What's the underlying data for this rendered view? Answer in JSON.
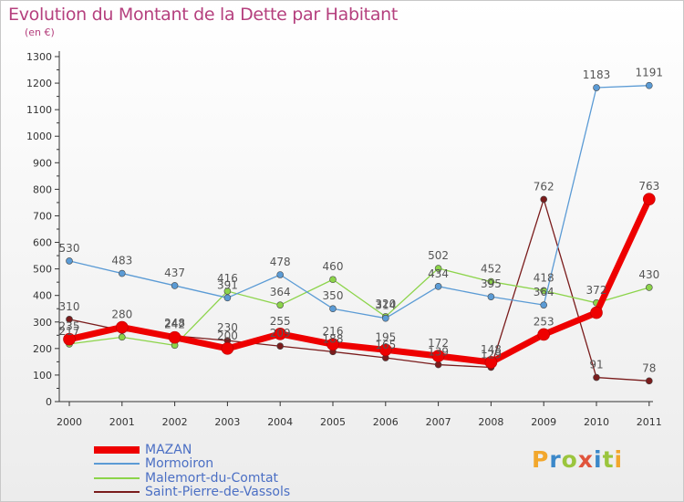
{
  "title": "Evolution du Montant de la Dette par Habitant",
  "unit_note": "(en €)",
  "logo_text": "Proxiti",
  "logo_colors": [
    "#f2a72c",
    "#3b88c9",
    "#9bc53d",
    "#e0543c",
    "#3b88c9",
    "#9bc53d",
    "#f2a72c"
  ],
  "chart_data": {
    "type": "line",
    "x": [
      "2000",
      "2001",
      "2002",
      "2003",
      "2004",
      "2005",
      "2006",
      "2007",
      "2008",
      "2009",
      "2010",
      "2011"
    ],
    "ylim": [
      0,
      1300
    ],
    "yticks": [
      0,
      100,
      200,
      300,
      400,
      500,
      600,
      700,
      800,
      900,
      1000,
      1100,
      1200,
      1300
    ],
    "grid": false,
    "legend": "bottom-left",
    "series": [
      {
        "name": "Saint-Pierre-de-Vassols",
        "color": "#7a1c1c",
        "values": [
          310,
          268,
          248,
          230,
          209,
          188,
          165,
          139,
          129,
          762,
          91,
          78
        ],
        "labels": [
          "310",
          "",
          "248",
          "230",
          "209",
          "188",
          "165",
          "139",
          "129",
          "762",
          "91",
          "78"
        ]
      },
      {
        "name": "Malemort-du-Comtat",
        "color": "#8cd44a",
        "values": [
          217,
          243,
          212,
          416,
          364,
          460,
          320,
          502,
          452,
          418,
          372,
          430
        ],
        "labels": [
          "217",
          "",
          "",
          "416",
          "364",
          "460",
          "320",
          "502",
          "452",
          "418",
          "372",
          "430"
        ]
      },
      {
        "name": "Mormoiron",
        "color": "#5b9bd5",
        "values": [
          530,
          483,
          437,
          391,
          478,
          350,
          314,
          434,
          395,
          364,
          1183,
          1191
        ],
        "labels": [
          "530",
          "483",
          "437",
          "391",
          "478",
          "350",
          "314",
          "434",
          "395",
          "364",
          "1183",
          "1191"
        ]
      },
      {
        "name": "MAZAN",
        "color": "#ee0000",
        "values": [
          235,
          280,
          242,
          200,
          255,
          216,
          195,
          172,
          148,
          253,
          335,
          763
        ],
        "labels": [
          "235",
          "280",
          "242",
          "200",
          "255",
          "216",
          "195",
          "172",
          "148",
          "253",
          "",
          "763"
        ]
      }
    ],
    "legend_order": [
      "MAZAN",
      "Mormoiron",
      "Malemort-du-Comtat",
      "Saint-Pierre-de-Vassols"
    ]
  }
}
